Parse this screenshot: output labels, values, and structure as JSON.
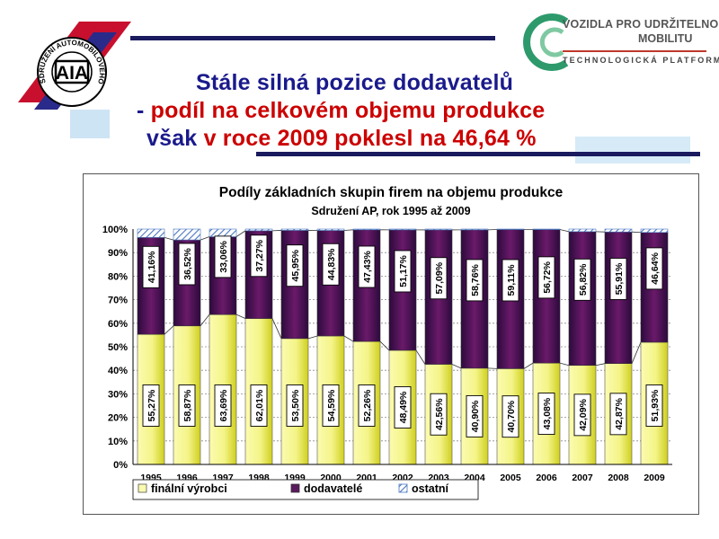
{
  "logo_left": {
    "text": "AIA",
    "ring_text": "SDRUŽENÍ AUTOMOBILOVÉHO PRŮMYSLU"
  },
  "logo_right": {
    "line1": "VOZIDLA PRO UDRŽITELNOU",
    "line2": "MOBILITU",
    "line3": "TECHNOLOGICKÁ PLATFORMA"
  },
  "headline": {
    "line1": "Stále silná pozice dodavatelů",
    "line2_dash": "- ",
    "line2_rest": "podíl na celkovém objemu produkce",
    "line3_a": "však ",
    "line3_b": "v roce ",
    "line3_c": "2009",
    "line3_d": " poklesl na 46,64 %"
  },
  "chart_data": {
    "type": "bar",
    "stacked": true,
    "percent": true,
    "title": "Podíly základních skupin firem na objemu produkce",
    "subtitle": "Sdružení AP, rok 1995 až 2009",
    "categories": [
      "1995",
      "1996",
      "1997",
      "1998",
      "1999",
      "2000",
      "2001",
      "2002",
      "2003",
      "2004",
      "2005",
      "2006",
      "2007",
      "2008",
      "2009"
    ],
    "series": [
      {
        "name": "finální výrobci",
        "values": [
          55.27,
          58.87,
          63.69,
          62.01,
          53.5,
          54.59,
          52.26,
          48.49,
          42.56,
          40.9,
          40.7,
          43.08,
          42.09,
          42.87,
          51.93
        ],
        "labels": [
          "55,27%",
          "58,87%",
          "63,69%",
          "62,01%",
          "53,50%",
          "54,59%",
          "52,26%",
          "48,49%",
          "42,56%",
          "40,90%",
          "40,70%",
          "43,08%",
          "42,09%",
          "42,87%",
          "51,93%"
        ]
      },
      {
        "name": "dodavatelé",
        "values": [
          41.16,
          36.52,
          33.06,
          37.27,
          45.95,
          44.83,
          47.43,
          51.17,
          57.09,
          58.76,
          59.11,
          56.72,
          56.82,
          55.91,
          46.64
        ],
        "labels": [
          "41,16%",
          "36,52%",
          "33,06%",
          "37,27%",
          "45,95%",
          "44,83%",
          "47,43%",
          "51,17%",
          "57,09%",
          "58,76%",
          "59,11%",
          "56,72%",
          "56,82%",
          "55,91%",
          "46,64%"
        ]
      },
      {
        "name": "ostatní",
        "values": [
          3.57,
          4.61,
          3.25,
          0.72,
          0.55,
          0.58,
          0.31,
          0.34,
          0.35,
          0.34,
          0.19,
          0.2,
          1.09,
          1.22,
          1.43
        ]
      }
    ],
    "yticks": [
      "0%",
      "10%",
      "20%",
      "30%",
      "40%",
      "50%",
      "60%",
      "70%",
      "80%",
      "90%",
      "100%"
    ],
    "ylim": [
      0,
      100
    ],
    "legend_position": "bottom-left",
    "colors": {
      "finalni_light": "#ffffd8",
      "finalni_mid": "#f0f070",
      "finalni_dark": "#c8c800",
      "dodavatele_dark": "#3a0a4a",
      "dodavatele_mid": "#7a1a78",
      "ostatni": "#4a76c0"
    }
  }
}
